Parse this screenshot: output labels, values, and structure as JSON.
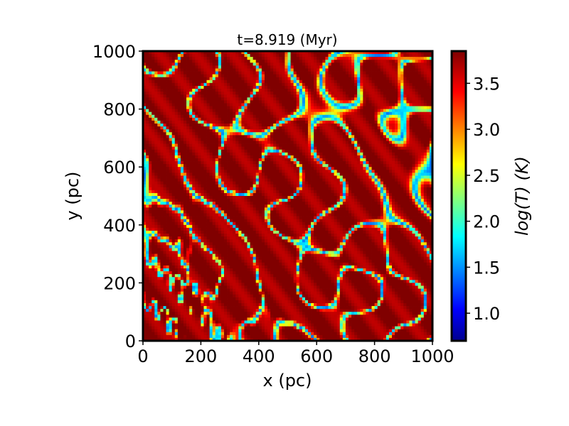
{
  "chart_data": {
    "type": "heatmap",
    "title": "t=8.919 (Myr)",
    "xlabel": "x (pc)",
    "ylabel": "y (pc)",
    "xlim": [
      0,
      1000
    ],
    "ylim": [
      0,
      1000
    ],
    "xticks": [
      0,
      200,
      400,
      600,
      800,
      1000
    ],
    "yticks": [
      0,
      200,
      400,
      600,
      800,
      1000
    ],
    "colorbar": {
      "label": "log(T) (K)",
      "range": [
        0.7,
        3.85
      ],
      "ticks": [
        1.0,
        1.5,
        2.0,
        2.5,
        3.0,
        3.5
      ],
      "tick_labels": [
        "1.0",
        "1.5",
        "2.0",
        "2.5",
        "3.0",
        "3.5"
      ],
      "colormap": "jet"
    },
    "grid": false,
    "field_description": "log temperature map; mostly hot (~3.5-3.8) with filamentary cooler (~1.5-2.5) structures, densest small-scale turbulence in lower-left corner"
  }
}
